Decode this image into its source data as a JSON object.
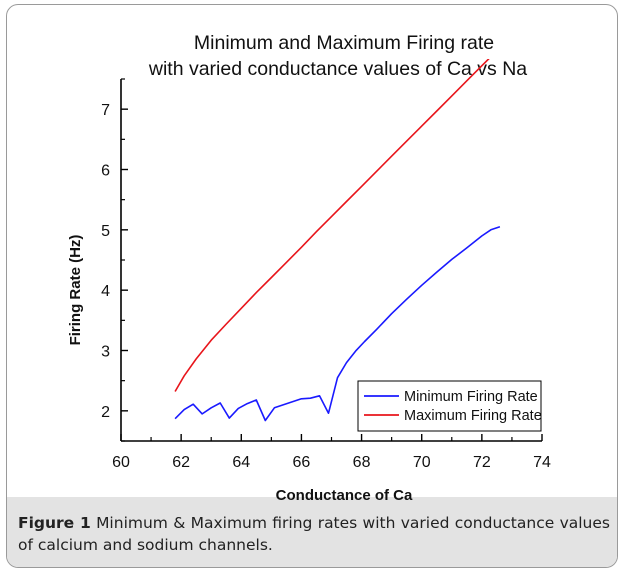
{
  "chart_data": {
    "type": "line",
    "title": "Minimum and Maximum Firing rate",
    "subtitle": "with varied conductance values of Ca vs Na",
    "xlabel": "Conductance of Ca",
    "ylabel": "Firing Rate (Hz)",
    "xlim": [
      60,
      74
    ],
    "ylim": [
      1.5,
      7.5
    ],
    "xticks": [
      "60",
      "62",
      "64",
      "66",
      "68",
      "70",
      "72",
      "74"
    ],
    "yticks": [
      "2",
      "3",
      "4",
      "5",
      "6",
      "7"
    ],
    "grid": false,
    "legend_position": "bottom-right",
    "series": [
      {
        "name": "Minimum Firing Rate",
        "color": "#1a1aff",
        "x": [
          61.8,
          62.1,
          62.4,
          62.7,
          63.0,
          63.3,
          63.6,
          63.9,
          64.2,
          64.5,
          64.8,
          65.1,
          65.4,
          65.7,
          66.0,
          66.3,
          66.6,
          66.9,
          67.2,
          67.5,
          67.8,
          68.1,
          68.5,
          69.0,
          69.5,
          70.0,
          70.5,
          71.0,
          71.5,
          72.0,
          72.3,
          72.6
        ],
        "y": [
          1.87,
          2.02,
          2.11,
          1.95,
          2.05,
          2.13,
          1.88,
          2.04,
          2.12,
          2.18,
          1.84,
          2.05,
          2.1,
          2.15,
          2.2,
          2.21,
          2.25,
          1.96,
          2.55,
          2.8,
          2.99,
          3.15,
          3.35,
          3.61,
          3.85,
          4.08,
          4.3,
          4.51,
          4.7,
          4.9,
          5.0,
          5.05
        ]
      },
      {
        "name": "Maximum Firing Rate",
        "color": "#e8151b",
        "x": [
          61.8,
          62.1,
          62.5,
          63.0,
          63.5,
          64.0,
          64.5,
          65.0,
          65.5,
          66.0,
          66.5,
          67.0,
          67.5,
          68.0,
          68.5,
          69.0,
          69.5,
          70.0,
          70.5,
          71.0,
          71.5,
          72.0,
          72.3,
          72.6
        ],
        "y": [
          2.32,
          2.58,
          2.86,
          3.17,
          3.44,
          3.7,
          3.96,
          4.21,
          4.46,
          4.71,
          4.97,
          5.22,
          5.47,
          5.72,
          5.97,
          6.22,
          6.47,
          6.72,
          6.97,
          7.22,
          7.47,
          7.72,
          7.87,
          8.02
        ]
      }
    ]
  },
  "caption": {
    "label": "Figure 1",
    "text": "Minimum & Maximum firing rates with varied conductance values of calcium and sodium channels."
  }
}
